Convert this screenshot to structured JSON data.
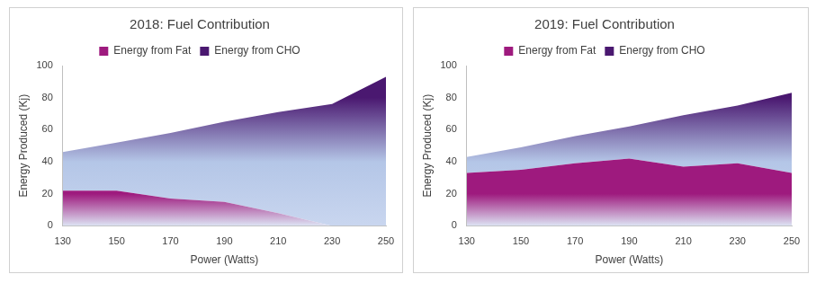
{
  "chart_data": [
    {
      "type": "area",
      "title": "2018: Fuel Contribution",
      "x_label": "Power (Watts)",
      "y_label": "Energy Produced (Kj)",
      "x": [
        130,
        150,
        170,
        190,
        210,
        230,
        250
      ],
      "series": [
        {
          "name": "Energy from Fat",
          "color": "#9e1a7e",
          "values": [
            22,
            22,
            17,
            15,
            8,
            0,
            0
          ]
        },
        {
          "name": "Energy from CHO",
          "color": "#4a1870",
          "values": [
            24,
            30,
            41,
            50,
            63,
            76,
            93
          ]
        }
      ],
      "xlim": [
        130,
        250
      ],
      "xticks": [
        130,
        150,
        170,
        190,
        210,
        230,
        250
      ],
      "ylim": [
        0,
        100
      ],
      "yticks": [
        0,
        20,
        40,
        60,
        80,
        100
      ],
      "stacked": true,
      "grid": false,
      "legend": "top"
    },
    {
      "type": "area",
      "title": "2019: Fuel Contribution",
      "x_label": "Power (Watts)",
      "y_label": "Energy Produced (Kj)",
      "x": [
        130,
        150,
        170,
        190,
        210,
        230,
        250
      ],
      "series": [
        {
          "name": "Energy from Fat",
          "color": "#9e1a7e",
          "values": [
            33,
            35,
            39,
            42,
            37,
            39,
            33
          ]
        },
        {
          "name": "Energy from CHO",
          "color": "#4a1870",
          "values": [
            10,
            14,
            17,
            20,
            32,
            36,
            50
          ]
        }
      ],
      "xlim": [
        130,
        250
      ],
      "xticks": [
        130,
        150,
        170,
        190,
        210,
        230,
        250
      ],
      "ylim": [
        0,
        100
      ],
      "yticks": [
        0,
        20,
        40,
        60,
        80,
        100
      ],
      "stacked": true,
      "grid": false,
      "legend": "top"
    }
  ]
}
